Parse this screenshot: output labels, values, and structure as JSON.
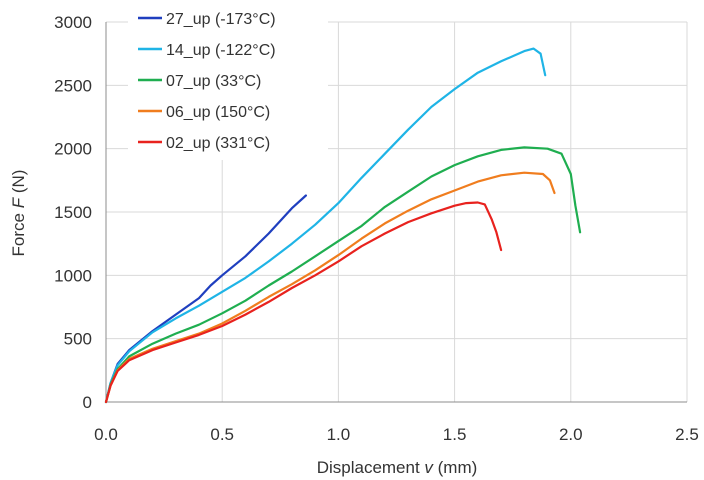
{
  "chart_data": {
    "type": "line",
    "xlabel": {
      "prefix": "Displacement ",
      "var": "v",
      "suffix": " (mm)"
    },
    "ylabel": {
      "prefix": "Force ",
      "var": "F",
      "suffix": " (N)"
    },
    "xlim": [
      0,
      2.5
    ],
    "ylim": [
      0,
      3000
    ],
    "xticks": [
      "0.0",
      "0.5",
      "1.0",
      "1.5",
      "2.0",
      "2.5"
    ],
    "yticks": [
      "0",
      "500",
      "1000",
      "1500",
      "2000",
      "2500",
      "3000"
    ],
    "grid": true,
    "legend_position": "top-left",
    "series": [
      {
        "name": "27_up (-173°C)",
        "color": "#1f3fbf",
        "points": [
          [
            0,
            0
          ],
          [
            0.02,
            150
          ],
          [
            0.05,
            300
          ],
          [
            0.1,
            410
          ],
          [
            0.2,
            560
          ],
          [
            0.3,
            690
          ],
          [
            0.4,
            820
          ],
          [
            0.45,
            920
          ],
          [
            0.5,
            1000
          ],
          [
            0.6,
            1150
          ],
          [
            0.7,
            1330
          ],
          [
            0.8,
            1530
          ],
          [
            0.86,
            1630
          ]
        ]
      },
      {
        "name": "14_up (-122°C)",
        "color": "#1fb4e6",
        "points": [
          [
            0,
            0
          ],
          [
            0.02,
            150
          ],
          [
            0.05,
            290
          ],
          [
            0.1,
            400
          ],
          [
            0.2,
            550
          ],
          [
            0.3,
            660
          ],
          [
            0.4,
            760
          ],
          [
            0.5,
            870
          ],
          [
            0.6,
            980
          ],
          [
            0.7,
            1110
          ],
          [
            0.8,
            1250
          ],
          [
            0.9,
            1400
          ],
          [
            1.0,
            1570
          ],
          [
            1.1,
            1770
          ],
          [
            1.2,
            1960
          ],
          [
            1.3,
            2150
          ],
          [
            1.4,
            2330
          ],
          [
            1.5,
            2470
          ],
          [
            1.6,
            2600
          ],
          [
            1.7,
            2690
          ],
          [
            1.8,
            2770
          ],
          [
            1.84,
            2790
          ],
          [
            1.87,
            2750
          ],
          [
            1.89,
            2580
          ]
        ]
      },
      {
        "name": "07_up (33°C)",
        "color": "#1fae50",
        "points": [
          [
            0,
            0
          ],
          [
            0.02,
            140
          ],
          [
            0.05,
            260
          ],
          [
            0.1,
            360
          ],
          [
            0.2,
            460
          ],
          [
            0.3,
            540
          ],
          [
            0.4,
            610
          ],
          [
            0.5,
            700
          ],
          [
            0.6,
            800
          ],
          [
            0.7,
            920
          ],
          [
            0.8,
            1030
          ],
          [
            0.9,
            1150
          ],
          [
            1.0,
            1270
          ],
          [
            1.1,
            1390
          ],
          [
            1.2,
            1540
          ],
          [
            1.3,
            1660
          ],
          [
            1.4,
            1780
          ],
          [
            1.5,
            1870
          ],
          [
            1.6,
            1940
          ],
          [
            1.7,
            1990
          ],
          [
            1.8,
            2010
          ],
          [
            1.9,
            2000
          ],
          [
            1.96,
            1960
          ],
          [
            2.0,
            1800
          ],
          [
            2.02,
            1550
          ],
          [
            2.04,
            1340
          ]
        ]
      },
      {
        "name": "06_up (150°C)",
        "color": "#f07d1e",
        "points": [
          [
            0,
            0
          ],
          [
            0.02,
            130
          ],
          [
            0.05,
            250
          ],
          [
            0.1,
            340
          ],
          [
            0.2,
            420
          ],
          [
            0.3,
            480
          ],
          [
            0.4,
            540
          ],
          [
            0.5,
            620
          ],
          [
            0.6,
            720
          ],
          [
            0.7,
            830
          ],
          [
            0.8,
            930
          ],
          [
            0.9,
            1040
          ],
          [
            1.0,
            1160
          ],
          [
            1.1,
            1290
          ],
          [
            1.2,
            1410
          ],
          [
            1.3,
            1510
          ],
          [
            1.4,
            1600
          ],
          [
            1.5,
            1670
          ],
          [
            1.6,
            1740
          ],
          [
            1.7,
            1790
          ],
          [
            1.8,
            1810
          ],
          [
            1.88,
            1800
          ],
          [
            1.91,
            1750
          ],
          [
            1.93,
            1650
          ]
        ]
      },
      {
        "name": "02_up (331°C)",
        "color": "#e8221e",
        "points": [
          [
            0,
            0
          ],
          [
            0.02,
            130
          ],
          [
            0.05,
            245
          ],
          [
            0.1,
            330
          ],
          [
            0.2,
            410
          ],
          [
            0.3,
            470
          ],
          [
            0.4,
            530
          ],
          [
            0.5,
            600
          ],
          [
            0.6,
            690
          ],
          [
            0.7,
            790
          ],
          [
            0.8,
            900
          ],
          [
            0.9,
            1000
          ],
          [
            1.0,
            1110
          ],
          [
            1.1,
            1230
          ],
          [
            1.2,
            1330
          ],
          [
            1.3,
            1420
          ],
          [
            1.4,
            1490
          ],
          [
            1.5,
            1550
          ],
          [
            1.55,
            1570
          ],
          [
            1.6,
            1575
          ],
          [
            1.63,
            1560
          ],
          [
            1.66,
            1440
          ],
          [
            1.68,
            1340
          ],
          [
            1.7,
            1200
          ]
        ]
      }
    ]
  }
}
